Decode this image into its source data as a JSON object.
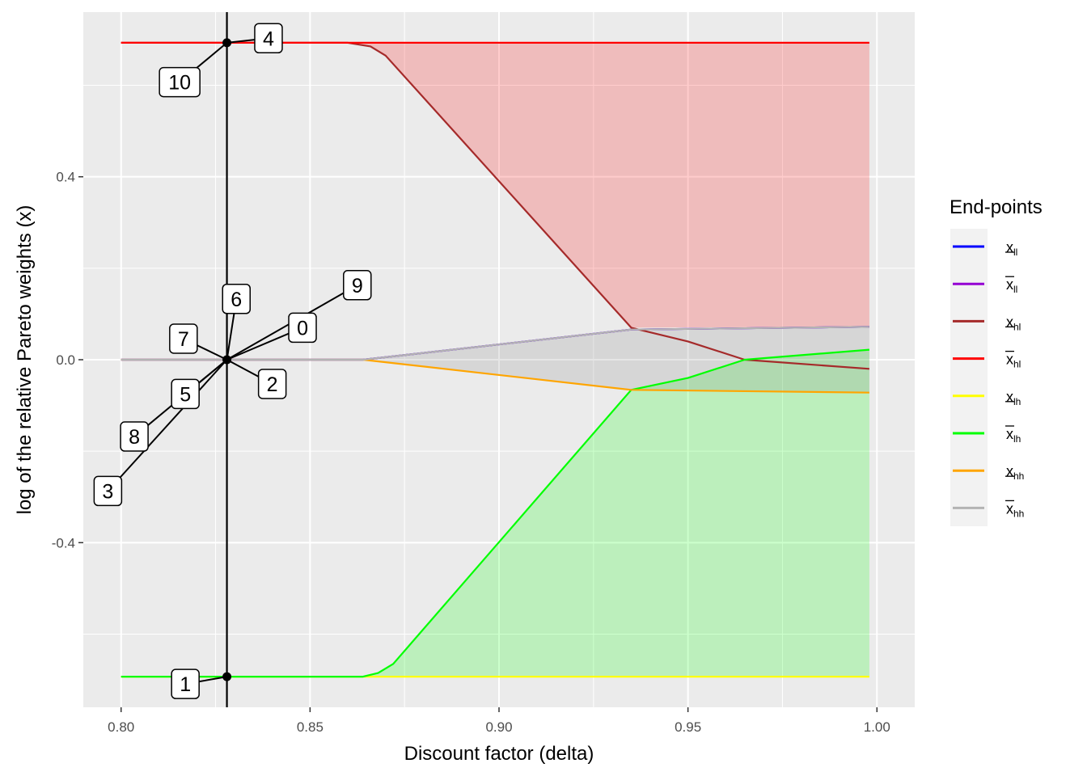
{
  "chart_data": {
    "type": "line",
    "title": "",
    "xlabel": "Discount factor (delta)",
    "ylabel": "log of the relative Pareto weights (x)",
    "xlim": [
      0.79,
      1.01
    ],
    "ylim": [
      -0.76,
      0.76
    ],
    "x_ticks": [
      0.8,
      0.85,
      0.9,
      0.95,
      1.0
    ],
    "x_tick_labels": [
      "0.80",
      "0.85",
      "0.90",
      "0.95",
      "1.00"
    ],
    "y_ticks": [
      -0.4,
      0.0,
      0.4
    ],
    "y_tick_labels": [
      "-0.4",
      "0.0",
      "0.4"
    ],
    "grid": true,
    "legend": {
      "title": "End-points",
      "placement": "right",
      "entries": [
        {
          "base": "x",
          "sub": "ll",
          "bar": "under",
          "color": "#0000ff"
        },
        {
          "base": "x",
          "sub": "ll",
          "bar": "over",
          "color": "#9400d3"
        },
        {
          "base": "x",
          "sub": "hl",
          "bar": "under",
          "color": "#a52a2a"
        },
        {
          "base": "x",
          "sub": "hl",
          "bar": "over",
          "color": "#ff0000"
        },
        {
          "base": "x",
          "sub": "lh",
          "bar": "under",
          "color": "#ffff00"
        },
        {
          "base": "x",
          "sub": "lh",
          "bar": "over",
          "color": "#00ff00"
        },
        {
          "base": "x",
          "sub": "hh",
          "bar": "under",
          "color": "#ffa500"
        },
        {
          "base": "x",
          "sub": "hh",
          "bar": "over",
          "color": "#b3b3b3"
        }
      ]
    },
    "series": [
      {
        "name": "x_ll lower",
        "color": "#0000ff",
        "x": [
          0.8,
          0.864,
          0.935,
          0.998
        ],
        "y": [
          0.0,
          0.0,
          0.066,
          0.072
        ]
      },
      {
        "name": "x_ll upper",
        "color": "#9400d3",
        "x": [
          0.8,
          0.864,
          0.935,
          0.998
        ],
        "y": [
          0.0,
          0.0,
          0.066,
          0.072
        ]
      },
      {
        "name": "x_hl lower",
        "color": "#a52a2a",
        "x": [
          0.8,
          0.86,
          0.866,
          0.87,
          0.935,
          0.95,
          0.965,
          0.998
        ],
        "y": [
          0.693,
          0.693,
          0.685,
          0.665,
          0.07,
          0.04,
          0.0,
          -0.02
        ]
      },
      {
        "name": "x_hl upper",
        "color": "#ff0000",
        "x": [
          0.8,
          0.998
        ],
        "y": [
          0.693,
          0.693
        ]
      },
      {
        "name": "x_lh lower",
        "color": "#ffff00",
        "x": [
          0.8,
          0.998
        ],
        "y": [
          -0.693,
          -0.693
        ]
      },
      {
        "name": "x_lh upper",
        "color": "#00ff00",
        "x": [
          0.8,
          0.864,
          0.868,
          0.872,
          0.935,
          0.95,
          0.965,
          0.998
        ],
        "y": [
          -0.693,
          -0.693,
          -0.685,
          -0.665,
          -0.066,
          -0.04,
          0.0,
          0.022
        ]
      },
      {
        "name": "x_hh lower",
        "color": "#ffa500",
        "x": [
          0.8,
          0.864,
          0.935,
          0.998
        ],
        "y": [
          0.0,
          0.0,
          -0.066,
          -0.072
        ]
      },
      {
        "name": "x_hh upper",
        "color": "#b3b3b3",
        "x": [
          0.8,
          0.864,
          0.935,
          0.998
        ],
        "y": [
          0.0,
          0.0,
          0.066,
          0.072
        ]
      }
    ],
    "ribbons": [
      {
        "name": "hl band",
        "color": "#ff0000",
        "opacity": 0.2,
        "x": [
          0.8,
          0.86,
          0.866,
          0.87,
          0.935,
          0.998
        ],
        "lower": [
          0.693,
          0.693,
          0.685,
          0.665,
          0.07,
          0.072
        ],
        "upper": [
          0.693,
          0.693,
          0.693,
          0.693,
          0.693,
          0.693
        ]
      },
      {
        "name": "lh band",
        "color": "#00ff00",
        "opacity": 0.2,
        "x": [
          0.8,
          0.864,
          0.868,
          0.872,
          0.935,
          0.95,
          0.965,
          0.998
        ],
        "lower": [
          -0.693,
          -0.693,
          -0.693,
          -0.693,
          -0.693,
          -0.693,
          -0.693,
          -0.693
        ],
        "upper": [
          -0.693,
          -0.693,
          -0.685,
          -0.665,
          -0.066,
          -0.04,
          0.0,
          0.022
        ]
      },
      {
        "name": "hh band",
        "color": "#808080",
        "opacity": 0.2,
        "x": [
          0.8,
          0.864,
          0.935,
          0.998
        ],
        "lower": [
          0.0,
          0.0,
          -0.066,
          -0.072
        ],
        "upper": [
          0.0,
          0.0,
          0.066,
          0.072
        ]
      }
    ],
    "vline": {
      "x": 0.828,
      "color": "#000000"
    },
    "points": [
      {
        "x": 0.828,
        "y": 0.693
      },
      {
        "x": 0.828,
        "y": 0.0
      },
      {
        "x": 0.828,
        "y": -0.693
      }
    ],
    "annotations": [
      {
        "text": "0",
        "target_y": 0.0,
        "x": 0.848,
        "y": 0.07
      },
      {
        "text": "1",
        "target_y": -0.693,
        "x": 0.817,
        "y": -0.709
      },
      {
        "text": "2",
        "target_y": 0.0,
        "x": 0.84,
        "y": -0.053
      },
      {
        "text": "3",
        "target_y": 0.0,
        "x": 0.7965,
        "y": -0.287
      },
      {
        "text": "4",
        "target_y": 0.693,
        "x": 0.839,
        "y": 0.703
      },
      {
        "text": "5",
        "target_y": 0.0,
        "x": 0.817,
        "y": -0.075
      },
      {
        "text": "6",
        "target_y": 0.0,
        "x": 0.8305,
        "y": 0.133
      },
      {
        "text": "7",
        "target_y": 0.0,
        "x": 0.8165,
        "y": 0.046
      },
      {
        "text": "8",
        "target_y": 0.0,
        "x": 0.8035,
        "y": -0.168
      },
      {
        "text": "9",
        "target_y": 0.0,
        "x": 0.8625,
        "y": 0.163
      },
      {
        "text": "10",
        "target_y": 0.693,
        "x": 0.8155,
        "y": 0.607
      }
    ]
  }
}
